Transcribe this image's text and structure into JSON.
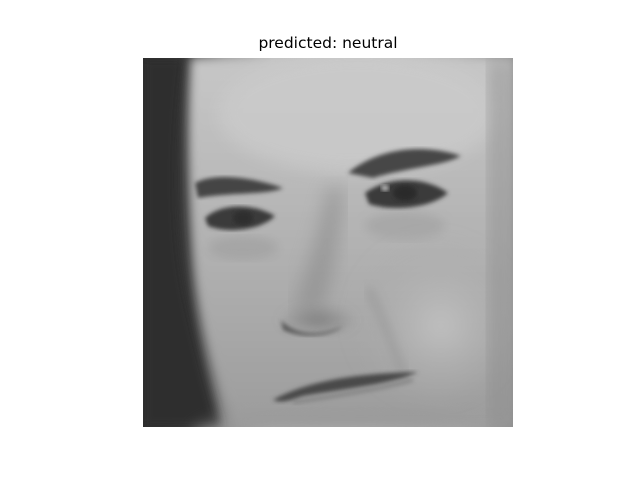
{
  "figure": {
    "title": "predicted: neutral"
  },
  "image": {
    "subject": "grayscale face crop",
    "palette": {
      "background_dark": "#2a2a2a",
      "skin_light": "#c8c8c8",
      "skin_mid": "#a9a9a9",
      "shadow": "#6e6e6e",
      "eyes": "#3a3a3a",
      "brows": "#444444",
      "mouth": "#4b4b4b"
    }
  }
}
